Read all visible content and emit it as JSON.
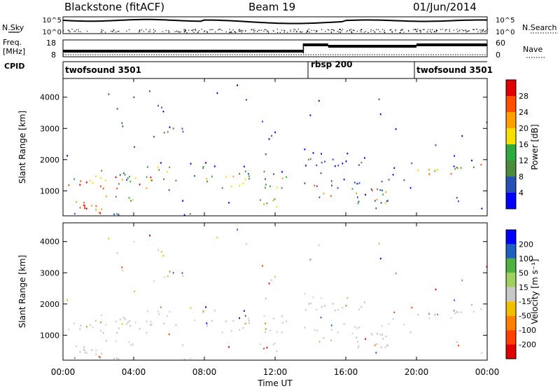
{
  "header": {
    "title": "Blackstone (fitACF)",
    "beam": "Beam 19",
    "date": "01/Jun/2014"
  },
  "top_panels": {
    "nsky_label": "N.Sky",
    "nsky_ticks": [
      "10^5",
      "10^0"
    ],
    "nsearch_label": "N.Search",
    "nsearch_ticks": [
      "10^5",
      "10^0"
    ],
    "freq_label": "Freq.",
    "freq_unit": "[MHz]",
    "freq_ticks": [
      "18",
      "8"
    ],
    "nave_label": "Nave",
    "nave_ticks": [
      "60",
      "0"
    ],
    "cpid_label": "CPID",
    "cpid_segments": [
      {
        "name": "twofsound 3501",
        "start": "00:00",
        "end": "13:30"
      },
      {
        "name": "rbsp 200",
        "start": "13:30",
        "end": "20:00"
      },
      {
        "name": "twofsound 3501",
        "start": "20:00",
        "end": "24:00"
      }
    ]
  },
  "colors": {
    "power": [
      "#0000ff",
      "#2851b5",
      "#4c8a3c",
      "#2faa3f",
      "#f6e000",
      "#ffa000",
      "#ff5000",
      "#e00000"
    ],
    "velocity": [
      "#0000ff",
      "#2060c0",
      "#50b040",
      "#a0d060",
      "#c8c8c8",
      "#f0c000",
      "#ff8000",
      "#ff4000",
      "#e00000"
    ]
  },
  "chart_data": [
    {
      "type": "heatmap",
      "name": "power",
      "ylabel": "Slant Range [km]",
      "yticks": [
        "4000",
        "3000",
        "2000",
        "1000"
      ],
      "ylim": [
        200,
        4600
      ],
      "colorbar_label": "Power [dB]",
      "colorbar_ticks": [
        "28",
        "24",
        "20",
        "16",
        "12",
        "8",
        "4"
      ],
      "colorbar_range": [
        0,
        32
      ]
    },
    {
      "type": "heatmap",
      "name": "velocity",
      "ylabel": "Slant Range [km]",
      "yticks": [
        "4000",
        "3000",
        "2000",
        "1000"
      ],
      "ylim": [
        200,
        4600
      ],
      "colorbar_label": "Velocity [m s⁻¹]",
      "colorbar_ticks": [
        "200",
        "100",
        "50",
        "15",
        "-15",
        "-50",
        "-100",
        "-200"
      ]
    }
  ],
  "xaxis": {
    "label": "Time UT",
    "ticks": [
      "00:00",
      "04:00",
      "08:00",
      "12:00",
      "16:00",
      "20:00",
      "00:00"
    ]
  }
}
